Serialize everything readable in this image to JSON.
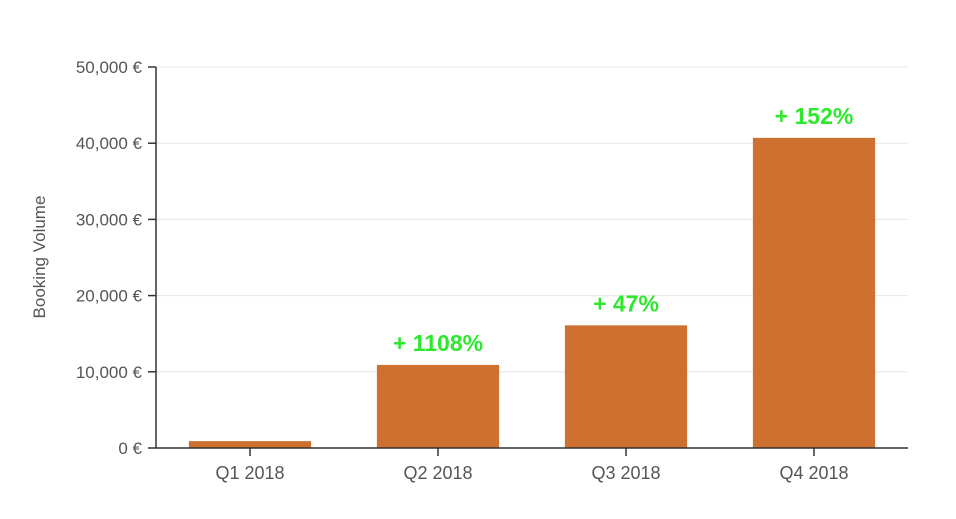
{
  "chart_data": {
    "type": "bar",
    "title": "",
    "xlabel": "",
    "ylabel": "Booking Volume",
    "categories": [
      "Q1 2018",
      "Q2 2018",
      "Q3 2018",
      "Q4 2018"
    ],
    "values": [
      900,
      10900,
      16100,
      40700
    ],
    "ylim": [
      0,
      50000
    ],
    "yticks": [
      0,
      10000,
      20000,
      30000,
      40000,
      50000
    ],
    "ytick_labels": [
      "0 €",
      "10,000 €",
      "20,000 €",
      "30,000 €",
      "40,000 €",
      "50,000 €"
    ],
    "annotations": [
      "",
      "+ 1108%",
      "+ 47%",
      "+ 152%"
    ],
    "grid": true,
    "colors": {
      "bar": "#cd7030",
      "annotation": "#2ee82e",
      "grid": "#e6e6e6",
      "axis": "#333333"
    }
  }
}
